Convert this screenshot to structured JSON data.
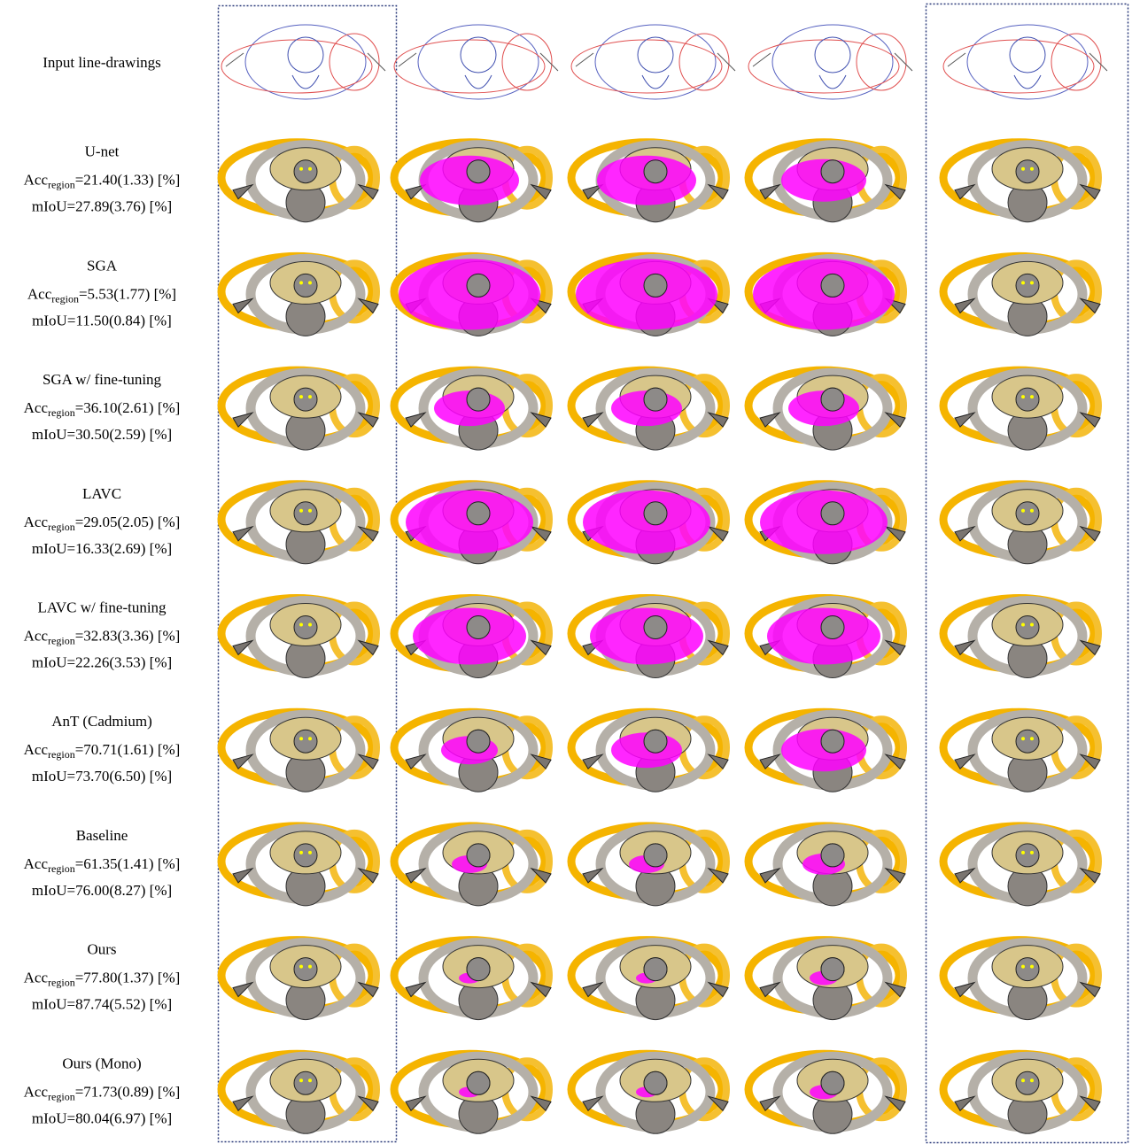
{
  "header": {
    "input_label": "Input line-drawings"
  },
  "rows": [
    {
      "method": "U-net",
      "acc_symbol": "Acc",
      "acc_subscript": "region",
      "acc": "=21.40(1.33) [%]",
      "miou": "mIoU=27.89(3.76) [%]"
    },
    {
      "method": "SGA",
      "acc_symbol": "Acc",
      "acc_subscript": "region",
      "acc": "=5.53(1.77) [%]",
      "miou": "mIoU=11.50(0.84) [%]"
    },
    {
      "method": "SGA w/ fine-tuning",
      "acc_symbol": "Acc",
      "acc_subscript": "region",
      "acc": "=36.10(2.61) [%]",
      "miou": "mIoU=30.50(2.59) [%]"
    },
    {
      "method": "LAVC",
      "acc_symbol": "Acc",
      "acc_subscript": "region",
      "acc": "=29.05(2.05) [%]",
      "miou": "mIoU=16.33(2.69) [%]"
    },
    {
      "method": "LAVC w/ fine-tuning",
      "acc_symbol": "Acc",
      "acc_subscript": "region",
      "acc": "=32.83(3.36) [%]",
      "miou": "mIoU=22.26(3.53) [%]"
    },
    {
      "method": "AnT (Cadmium)",
      "acc_symbol": "Acc",
      "acc_subscript": "region",
      "acc": "=70.71(1.61) [%]",
      "miou": "mIoU=73.70(6.50) [%]"
    },
    {
      "method": "Baseline",
      "acc_symbol": "Acc",
      "acc_subscript": "region",
      "acc": "=61.35(1.41) [%]",
      "miou": "mIoU=76.00(8.27) [%]"
    },
    {
      "method": "Ours",
      "acc_symbol": "Acc",
      "acc_subscript": "region",
      "acc": "=77.80(1.37) [%]",
      "miou": "mIoU=87.74(5.52) [%]"
    },
    {
      "method": "Ours (Mono)",
      "acc_symbol": "Acc",
      "acc_subscript": "region",
      "acc": "=71.73(0.89) [%]",
      "miou": "mIoU=80.04(6.97) [%]"
    }
  ]
}
